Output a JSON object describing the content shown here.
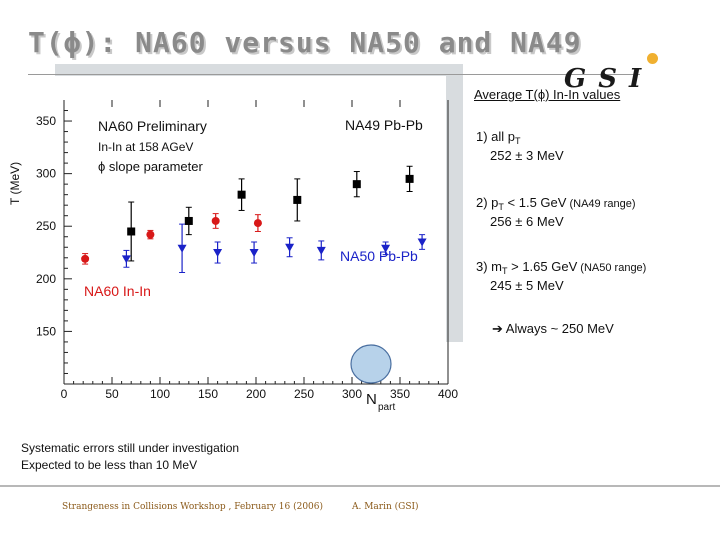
{
  "slide": {
    "title": "T(ϕ): NA60 versus NA50 and NA49",
    "logo_text": "GSI",
    "average_heading": "Average T(ϕ) In-In values",
    "item1_label": "1) all p",
    "item1_sub": "T",
    "item1_value": "252 ± 3 MeV",
    "item2_label": "2) p",
    "item2_sub": "T",
    "item2_cond": " < 1.5 GeV",
    "item2_note": " (NA49 range)",
    "item2_value": "256 ± 6 MeV",
    "item3_label": "3) m",
    "item3_sub": "T",
    "item3_cond": " > 1.65 GeV",
    "item3_note": " (NA50 range)",
    "item3_value": "245 ± 5 MeV",
    "conclusion": "➔ Always ~ 250 MeV",
    "systematic_line1": "Systematic errors still under investigation",
    "systematic_line2": "Expected to be less than 10 MeV",
    "footer_left": "Strangeness in Collisions Workshop , February 16 (2006)",
    "footer_right": "A. Marin (GSI)"
  },
  "chart_data": {
    "type": "scatter",
    "xlabel": "N",
    "xlabel_sub": "part",
    "ylabel": "T (MeV)",
    "xlim": [
      0,
      400
    ],
    "ylim": [
      100,
      370
    ],
    "xticks": [
      0,
      50,
      100,
      150,
      200,
      250,
      300,
      350,
      400
    ],
    "yticks": [
      150,
      200,
      250,
      300,
      350
    ],
    "legend_block": [
      "NA60 Preliminary",
      "In-In at 158 AGeV",
      "ϕ slope parameter"
    ],
    "annotations": [
      "NA49 Pb-Pb",
      "NA50 Pb-Pb",
      "NA60 In-In"
    ],
    "series": [
      {
        "name": "NA49 Pb-Pb",
        "color": "#000000",
        "marker": "square",
        "x": [
          70,
          130,
          185,
          243,
          305,
          360
        ],
        "y": [
          245,
          255,
          280,
          275,
          290,
          295
        ],
        "yerr": [
          28,
          13,
          15,
          20,
          12,
          12
        ]
      },
      {
        "name": "NA50 Pb-Pb",
        "color": "#1a22c8",
        "marker": "triangle-down",
        "x": [
          65,
          123,
          160,
          198,
          235,
          268,
          335,
          373
        ],
        "y": [
          219,
          229,
          225,
          225,
          230,
          227,
          229,
          235
        ],
        "yerr": [
          8,
          23,
          10,
          10,
          9,
          9,
          6,
          7
        ]
      },
      {
        "name": "NA60 In-In",
        "color": "#d81818",
        "marker": "circle",
        "x": [
          22,
          90,
          158,
          202
        ],
        "y": [
          219,
          242,
          255,
          253
        ],
        "yerr": [
          5,
          4,
          7,
          8
        ]
      }
    ]
  }
}
